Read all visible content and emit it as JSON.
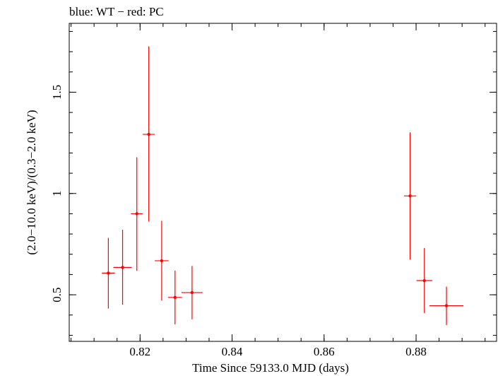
{
  "chart_data": {
    "type": "scatter",
    "title": "blue: WT − red: PC",
    "xlabel": "Time Since 59133.0 MJD (days)",
    "ylabel": "(2.0−10.0 keV)/(0.3−2.0 keV)",
    "xlim": [
      0.8046,
      0.8975
    ],
    "ylim": [
      0.27,
      1.84
    ],
    "x_major_ticks": [
      0.82,
      0.84,
      0.86,
      0.88
    ],
    "x_tick_labels": [
      "0.82",
      "0.84",
      "0.86",
      "0.88"
    ],
    "x_minor_step": 0.005,
    "y_major_ticks": [
      0.5,
      1,
      1.5
    ],
    "y_tick_labels": [
      "0.5",
      "1",
      "1.5"
    ],
    "y_minor_step": 0.1,
    "grid": false,
    "series": [
      {
        "name": "PC",
        "color": "#ff0000",
        "points": [
          {
            "x": 0.8131,
            "y": 0.607,
            "xerr": 0.0014,
            "ylo": 0.432,
            "yhi": 0.781
          },
          {
            "x": 0.8162,
            "y": 0.635,
            "xerr": 0.002,
            "ylo": 0.451,
            "yhi": 0.821
          },
          {
            "x": 0.8193,
            "y": 0.9,
            "xerr": 0.0013,
            "ylo": 0.618,
            "yhi": 1.179
          },
          {
            "x": 0.8219,
            "y": 1.292,
            "xerr": 0.0013,
            "ylo": 0.862,
            "yhi": 1.726
          },
          {
            "x": 0.8247,
            "y": 0.668,
            "xerr": 0.0015,
            "ylo": 0.472,
            "yhi": 0.865
          },
          {
            "x": 0.8276,
            "y": 0.487,
            "xerr": 0.0015,
            "ylo": 0.354,
            "yhi": 0.619
          },
          {
            "x": 0.8313,
            "y": 0.511,
            "xerr": 0.0023,
            "ylo": 0.379,
            "yhi": 0.642
          },
          {
            "x": 0.8787,
            "y": 0.988,
            "xerr": 0.0013,
            "ylo": 0.674,
            "yhi": 1.302
          },
          {
            "x": 0.8818,
            "y": 0.57,
            "xerr": 0.0017,
            "ylo": 0.41,
            "yhi": 0.731
          },
          {
            "x": 0.8866,
            "y": 0.446,
            "xerr": 0.0037,
            "ylo": 0.35,
            "yhi": 0.54
          }
        ]
      }
    ]
  }
}
